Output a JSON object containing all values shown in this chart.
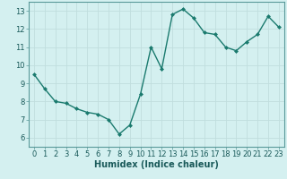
{
  "x": [
    0,
    1,
    2,
    3,
    4,
    5,
    6,
    7,
    8,
    9,
    10,
    11,
    12,
    13,
    14,
    15,
    16,
    17,
    18,
    19,
    20,
    21,
    22,
    23
  ],
  "y": [
    9.5,
    8.7,
    8.0,
    7.9,
    7.6,
    7.4,
    7.3,
    7.0,
    6.2,
    6.7,
    8.4,
    11.0,
    9.8,
    12.8,
    13.1,
    12.6,
    11.8,
    11.7,
    11.0,
    10.8,
    11.3,
    11.7,
    12.7,
    12.1
  ],
  "line_color": "#1a7a6e",
  "marker": "D",
  "marker_size": 2.0,
  "background_color": "#d4f0f0",
  "grid_color": "#c0dede",
  "xlabel": "Humidex (Indice chaleur)",
  "xlim": [
    -0.5,
    23.5
  ],
  "ylim": [
    5.5,
    13.5
  ],
  "xticks": [
    0,
    1,
    2,
    3,
    4,
    5,
    6,
    7,
    8,
    9,
    10,
    11,
    12,
    13,
    14,
    15,
    16,
    17,
    18,
    19,
    20,
    21,
    22,
    23
  ],
  "yticks": [
    6,
    7,
    8,
    9,
    10,
    11,
    12,
    13
  ],
  "xlabel_fontsize": 7,
  "tick_fontsize": 6,
  "line_width": 1.0,
  "spine_color": "#5a9a9a"
}
